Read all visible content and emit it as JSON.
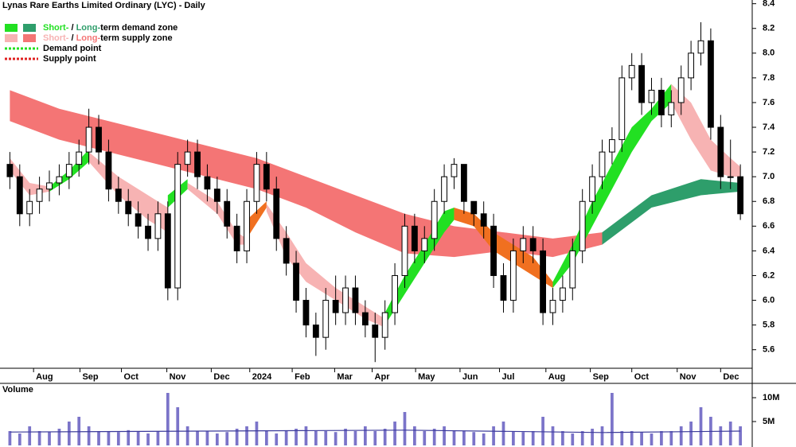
{
  "chart_data": [
    {
      "type": "candlestick",
      "title": "Lynas Rare Earths Limited Ordinary (LYC) - Daily",
      "legend": [
        {
          "short_color": "#22e022",
          "long_color": "#2e9e6b",
          "short_text": "Short-",
          "sep": " / ",
          "long_text": "Long-",
          "rest": "term demand zone"
        },
        {
          "short_color": "#f7b3b3",
          "long_color": "#f47575",
          "short_text": "Short-",
          "sep": " / ",
          "long_text": "Long-",
          "rest": "term supply zone"
        },
        {
          "color": "#22e022",
          "label": "Demand point"
        },
        {
          "color": "#e02020",
          "label": "Supply point"
        }
      ],
      "x": [
        0,
        1,
        2,
        3,
        4,
        5,
        6,
        7,
        8,
        9,
        10,
        11,
        12,
        13,
        14,
        15,
        16,
        17,
        18,
        19,
        20,
        21,
        22,
        23,
        24,
        25,
        26,
        27,
        28,
        29,
        30,
        31,
        32,
        33,
        34,
        35,
        36,
        37,
        38,
        39,
        40,
        41,
        42,
        43,
        44,
        45,
        46,
        47,
        48,
        49,
        50,
        51,
        52,
        53,
        54,
        55,
        56,
        57,
        58,
        59,
        60,
        61,
        62,
        63,
        64,
        65,
        66,
        67,
        68,
        69,
        70,
        71,
        72,
        73,
        74
      ],
      "open": [
        7.1,
        7.0,
        6.7,
        6.8,
        6.9,
        6.95,
        7.0,
        7.1,
        7.2,
        7.4,
        7.2,
        6.9,
        6.8,
        6.7,
        6.6,
        6.5,
        6.7,
        6.1,
        7.1,
        7.2,
        7.0,
        6.9,
        6.8,
        6.6,
        6.4,
        6.8,
        7.1,
        6.9,
        6.5,
        6.3,
        6.0,
        5.8,
        5.7,
        6.0,
        5.9,
        6.1,
        5.9,
        5.8,
        5.7,
        5.9,
        6.2,
        6.6,
        6.4,
        6.5,
        6.8,
        7.0,
        7.1,
        6.8,
        6.7,
        6.6,
        6.2,
        6.0,
        6.4,
        6.5,
        6.4,
        5.9,
        6.0,
        6.1,
        6.4,
        6.8,
        7.0,
        7.2,
        7.3,
        7.8,
        7.9,
        7.6,
        7.7,
        7.5,
        7.6,
        7.8,
        8.0,
        8.1,
        7.4,
        7.0,
        7.0
      ],
      "high": [
        7.2,
        7.1,
        6.9,
        7.0,
        7.05,
        7.1,
        7.2,
        7.3,
        7.55,
        7.5,
        7.3,
        7.0,
        6.9,
        6.8,
        6.7,
        6.8,
        6.8,
        7.2,
        7.3,
        7.3,
        7.1,
        7.0,
        6.9,
        6.7,
        6.9,
        7.2,
        7.2,
        7.0,
        6.6,
        6.4,
        6.1,
        5.9,
        6.1,
        6.2,
        6.2,
        6.2,
        6.0,
        5.9,
        6.0,
        6.3,
        6.7,
        6.7,
        6.6,
        6.9,
        7.1,
        7.15,
        7.1,
        6.8,
        6.8,
        6.7,
        6.3,
        6.5,
        6.6,
        6.6,
        6.5,
        6.1,
        6.2,
        6.5,
        6.9,
        7.1,
        7.3,
        7.4,
        7.9,
        8.0,
        8.0,
        7.8,
        7.8,
        7.7,
        7.9,
        8.1,
        8.25,
        8.2,
        7.5,
        7.3,
        7.1
      ],
      "low": [
        6.9,
        6.6,
        6.6,
        6.7,
        6.8,
        6.85,
        6.9,
        7.0,
        7.1,
        7.1,
        6.8,
        6.7,
        6.6,
        6.5,
        6.4,
        6.4,
        6.0,
        6.0,
        7.0,
        6.9,
        6.8,
        6.7,
        6.5,
        6.3,
        6.3,
        6.7,
        6.8,
        6.4,
        6.2,
        5.9,
        5.7,
        5.55,
        5.6,
        5.8,
        5.8,
        5.8,
        5.7,
        5.5,
        5.6,
        5.8,
        6.1,
        6.3,
        6.3,
        6.4,
        6.7,
        6.9,
        6.7,
        6.6,
        6.5,
        6.1,
        5.9,
        5.9,
        6.3,
        6.3,
        5.8,
        5.8,
        5.9,
        6.0,
        6.3,
        6.7,
        6.9,
        7.1,
        7.2,
        7.7,
        7.5,
        7.5,
        7.4,
        7.4,
        7.5,
        7.7,
        7.9,
        7.3,
        6.9,
        6.9,
        6.65
      ],
      "close": [
        7.0,
        6.7,
        6.8,
        6.9,
        6.95,
        7.0,
        7.1,
        7.2,
        7.4,
        7.2,
        6.9,
        6.8,
        6.7,
        6.6,
        6.5,
        6.7,
        6.1,
        7.1,
        7.2,
        7.0,
        6.9,
        6.8,
        6.6,
        6.4,
        6.8,
        7.1,
        6.9,
        6.5,
        6.3,
        6.0,
        5.8,
        5.7,
        6.0,
        5.9,
        6.1,
        5.9,
        5.8,
        5.7,
        5.9,
        6.2,
        6.6,
        6.4,
        6.5,
        6.8,
        7.0,
        7.1,
        6.8,
        6.7,
        6.6,
        6.2,
        6.0,
        6.4,
        6.5,
        6.4,
        5.9,
        6.0,
        6.1,
        6.4,
        6.8,
        7.0,
        7.2,
        7.3,
        7.8,
        7.9,
        7.6,
        7.7,
        7.5,
        7.6,
        7.8,
        8.0,
        8.1,
        7.4,
        7.0,
        7.0,
        6.7
      ],
      "long_zones": [
        {
          "color": "#f47575",
          "x": [
            0,
            5,
            10,
            15,
            20,
            25,
            30,
            35,
            40,
            45,
            50,
            55,
            60
          ],
          "upper": [
            7.7,
            7.55,
            7.45,
            7.35,
            7.25,
            7.15,
            7.0,
            6.85,
            6.7,
            6.6,
            6.55,
            6.5,
            6.55
          ],
          "lower": [
            7.45,
            7.3,
            7.2,
            7.1,
            7.0,
            6.9,
            6.75,
            6.55,
            6.38,
            6.35,
            6.4,
            6.35,
            6.45
          ]
        },
        {
          "color": "#2e9e6b",
          "x": [
            60,
            65,
            70,
            74
          ],
          "upper": [
            6.55,
            6.85,
            6.98,
            6.95
          ],
          "lower": [
            6.45,
            6.75,
            6.85,
            6.88
          ]
        }
      ],
      "short_zones": [
        {
          "color": "#f7b3b3",
          "x": [
            0,
            2,
            4
          ],
          "upper": [
            7.15,
            6.95,
            6.92
          ],
          "lower": [
            7.05,
            6.85,
            6.88
          ]
        },
        {
          "color": "#22e022",
          "x": [
            4,
            6,
            8
          ],
          "upper": [
            6.92,
            7.05,
            7.22
          ],
          "lower": [
            6.88,
            6.98,
            7.12
          ]
        },
        {
          "color": "#f7b3b3",
          "x": [
            8,
            11,
            14,
            16
          ],
          "upper": [
            7.2,
            7.0,
            6.85,
            6.75
          ],
          "lower": [
            7.12,
            6.85,
            6.65,
            6.55
          ]
        },
        {
          "color": "#22e022",
          "x": [
            16,
            18
          ],
          "upper": [
            6.85,
            6.98
          ],
          "lower": [
            6.75,
            6.9
          ]
        },
        {
          "color": "#f7b3b3",
          "x": [
            18,
            21,
            23,
            24
          ],
          "upper": [
            6.95,
            6.8,
            6.55,
            6.5
          ],
          "lower": [
            6.9,
            6.7,
            6.45,
            6.45
          ]
        },
        {
          "color": "#f07020",
          "x": [
            24,
            26
          ],
          "upper": [
            6.65,
            6.8
          ],
          "lower": [
            6.5,
            6.75
          ]
        },
        {
          "color": "#f7b3b3",
          "x": [
            26,
            28,
            30,
            33,
            36,
            38
          ],
          "upper": [
            6.78,
            6.55,
            6.3,
            6.1,
            5.95,
            5.85
          ],
          "lower": [
            6.72,
            6.35,
            6.15,
            6.0,
            5.85,
            5.78
          ]
        },
        {
          "color": "#22e022",
          "x": [
            38,
            40,
            42,
            44,
            45
          ],
          "upper": [
            5.9,
            6.2,
            6.45,
            6.72,
            6.75
          ],
          "lower": [
            5.8,
            6.05,
            6.3,
            6.55,
            6.65
          ]
        },
        {
          "color": "#f07020",
          "x": [
            45,
            47,
            49,
            51,
            53,
            55
          ],
          "upper": [
            6.75,
            6.7,
            6.55,
            6.45,
            6.35,
            6.15
          ],
          "lower": [
            6.65,
            6.6,
            6.4,
            6.3,
            6.2,
            6.1
          ]
        },
        {
          "color": "#22e022",
          "x": [
            55,
            57,
            59,
            61,
            63,
            65,
            67
          ],
          "upper": [
            6.15,
            6.45,
            6.8,
            7.1,
            7.4,
            7.55,
            7.75
          ],
          "lower": [
            6.1,
            6.3,
            6.6,
            6.9,
            7.2,
            7.45,
            7.6
          ]
        },
        {
          "color": "#f7b3b3",
          "x": [
            67,
            69,
            71,
            73,
            74
          ],
          "upper": [
            7.75,
            7.6,
            7.3,
            7.15,
            7.08
          ],
          "lower": [
            7.6,
            7.3,
            7.05,
            7.0,
            7.0
          ]
        }
      ],
      "xlim": [
        -1,
        75.2
      ],
      "xticks": [
        {
          "value": 2.4,
          "label": "Aug"
        },
        {
          "value": 7.1,
          "label": "Sep"
        },
        {
          "value": 11.3,
          "label": "Oct"
        },
        {
          "value": 15.9,
          "label": "Nov"
        },
        {
          "value": 20.4,
          "label": "Dec"
        },
        {
          "value": 24.3,
          "label": "2024"
        },
        {
          "value": 28.6,
          "label": "Feb"
        },
        {
          "value": 32.9,
          "label": "Mar"
        },
        {
          "value": 36.7,
          "label": "Apr"
        },
        {
          "value": 41.1,
          "label": "May"
        },
        {
          "value": 45.6,
          "label": "Jun"
        },
        {
          "value": 49.6,
          "label": "Jul"
        },
        {
          "value": 54.3,
          "label": "Aug"
        },
        {
          "value": 58.8,
          "label": "Sep"
        },
        {
          "value": 63,
          "label": "Oct"
        },
        {
          "value": 67.6,
          "label": "Nov"
        },
        {
          "value": 72,
          "label": "Dec"
        }
      ],
      "ylim": [
        5.45,
        8.43
      ],
      "yticks": [
        5.6,
        5.8,
        {
          "value": 6,
          "label": "6.0"
        },
        6.2,
        6.4,
        6.6,
        6.8,
        {
          "value": 7,
          "label": "7.0"
        },
        7.2,
        7.4,
        7.6,
        7.8,
        {
          "value": 8,
          "label": "8.0"
        },
        8.2,
        8.4
      ]
    },
    {
      "type": "bar",
      "title": "Volume",
      "color": "#7b74c9",
      "x": [
        0,
        1,
        2,
        3,
        4,
        5,
        6,
        7,
        8,
        9,
        10,
        11,
        12,
        13,
        14,
        15,
        16,
        17,
        18,
        19,
        20,
        21,
        22,
        23,
        24,
        25,
        26,
        27,
        28,
        29,
        30,
        31,
        32,
        33,
        34,
        35,
        36,
        37,
        38,
        39,
        40,
        41,
        42,
        43,
        44,
        45,
        46,
        47,
        48,
        49,
        50,
        51,
        52,
        53,
        54,
        55,
        56,
        57,
        58,
        59,
        60,
        61,
        62,
        63,
        64,
        65,
        66,
        67,
        68,
        69,
        70,
        71,
        72,
        73,
        74
      ],
      "values": [
        3,
        2.5,
        4,
        3,
        2.8,
        3.5,
        5,
        6,
        4,
        3,
        3,
        2.8,
        3.2,
        3,
        2.5,
        3,
        11,
        8,
        4,
        3,
        3,
        2.5,
        2.8,
        3.5,
        4,
        5,
        3,
        2.5,
        3,
        3.5,
        4,
        3,
        3,
        2.8,
        3.5,
        3,
        4,
        3,
        3.5,
        5,
        7,
        4,
        3,
        3.5,
        4,
        3,
        3,
        2.8,
        2.5,
        4,
        5,
        3,
        2.8,
        3,
        6,
        4,
        3,
        2.5,
        3,
        3.5,
        4,
        11,
        3,
        3,
        2.8,
        2.5,
        3,
        3,
        4,
        5,
        8,
        6,
        4,
        5,
        4
      ],
      "average": {
        "color": "#3b3b9a",
        "x": [
          0,
          20,
          40,
          60,
          74
        ],
        "values": [
          2.8,
          3.0,
          3.2,
          2.7,
          3.0
        ]
      },
      "xlim": [
        -1,
        75.2
      ],
      "ylim": [
        0,
        12
      ],
      "yticks": [
        {
          "value": 5,
          "label": "5M"
        },
        {
          "value": 10,
          "label": "10M"
        }
      ]
    }
  ]
}
